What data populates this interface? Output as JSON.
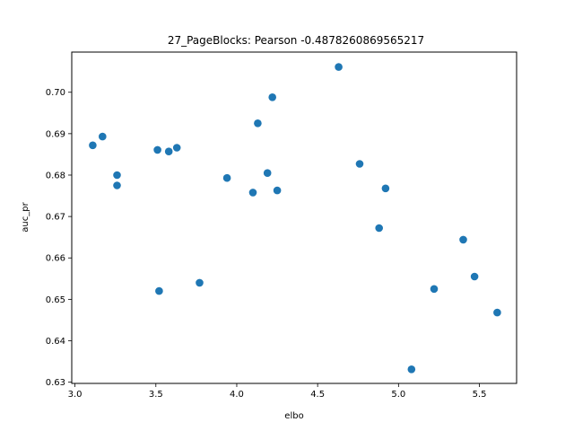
{
  "chart_data": {
    "type": "scatter",
    "title": "27_PageBlocks: Pearson -0.4878260869565217",
    "xlabel": "elbo",
    "ylabel": "auc_pr",
    "xlim": [
      2.98,
      5.73
    ],
    "ylim": [
      0.6297,
      0.7097
    ],
    "xticks": [
      3.0,
      3.5,
      4.0,
      4.5,
      5.0,
      5.5
    ],
    "xtick_labels": [
      "3.0",
      "3.5",
      "4.0",
      "4.5",
      "5.0",
      "5.5"
    ],
    "yticks": [
      0.63,
      0.64,
      0.65,
      0.66,
      0.67,
      0.68,
      0.69,
      0.7
    ],
    "ytick_labels": [
      "0.63",
      "0.64",
      "0.65",
      "0.66",
      "0.67",
      "0.68",
      "0.69",
      "0.70"
    ],
    "grid": false,
    "color": "#1f77b4",
    "points": [
      {
        "x": 3.11,
        "y": 0.6872
      },
      {
        "x": 3.17,
        "y": 0.6893
      },
      {
        "x": 3.26,
        "y": 0.68
      },
      {
        "x": 3.26,
        "y": 0.6775
      },
      {
        "x": 3.51,
        "y": 0.6861
      },
      {
        "x": 3.52,
        "y": 0.652
      },
      {
        "x": 3.58,
        "y": 0.6857
      },
      {
        "x": 3.63,
        "y": 0.6866
      },
      {
        "x": 3.77,
        "y": 0.654
      },
      {
        "x": 3.94,
        "y": 0.6793
      },
      {
        "x": 4.1,
        "y": 0.6758
      },
      {
        "x": 4.13,
        "y": 0.6925
      },
      {
        "x": 4.19,
        "y": 0.6805
      },
      {
        "x": 4.22,
        "y": 0.6988
      },
      {
        "x": 4.25,
        "y": 0.6763
      },
      {
        "x": 4.63,
        "y": 0.7061
      },
      {
        "x": 4.76,
        "y": 0.6827
      },
      {
        "x": 4.88,
        "y": 0.6672
      },
      {
        "x": 4.92,
        "y": 0.6768
      },
      {
        "x": 5.08,
        "y": 0.6331
      },
      {
        "x": 5.22,
        "y": 0.6525
      },
      {
        "x": 5.4,
        "y": 0.6644
      },
      {
        "x": 5.47,
        "y": 0.6555
      },
      {
        "x": 5.61,
        "y": 0.6468
      }
    ]
  }
}
